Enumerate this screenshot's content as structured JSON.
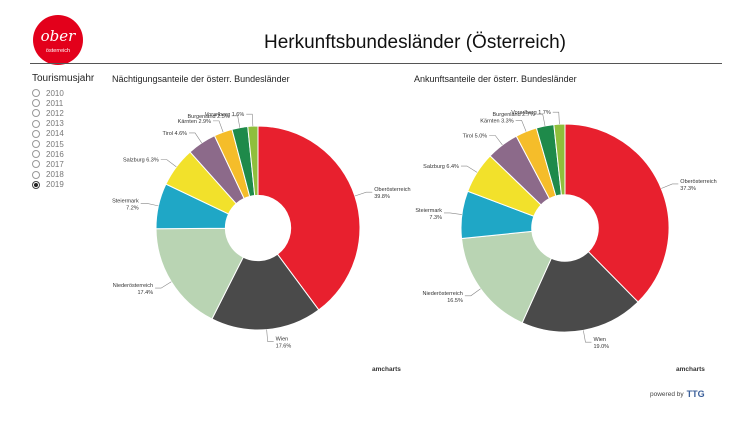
{
  "header": {
    "title": "Herkunftsbundesländer (Österreich)",
    "logo_word": "ober",
    "logo_sub": "österreich"
  },
  "years": {
    "title": "Tourismusjahr",
    "options": [
      "2010",
      "2011",
      "2012",
      "2013",
      "2014",
      "2015",
      "2016",
      "2017",
      "2018",
      "2019"
    ],
    "selected": "2019"
  },
  "credits": {
    "amcharts_1": "amcharts",
    "amcharts_2": "amcharts",
    "powered_by": "powered by",
    "powered_brand": "TTG"
  },
  "colors": {
    "Oberösterreich": "#e8202e",
    "Wien": "#4a4a4a",
    "Niederösterreich": "#b9d4b3",
    "Steiermark": "#1fa7c6",
    "Salzburg": "#f2e12b",
    "Tirol": "#8c6a8a",
    "Kärnten": "#f5bd2a",
    "Burgenland": "#1e8a4a",
    "Vorarlberg": "#8fbf3c"
  },
  "chart_data": [
    {
      "type": "pie",
      "title": "Nächtigungsanteile der österr. Bundesländer",
      "categories": [
        "Oberösterreich",
        "Wien",
        "Niederösterreich",
        "Steiermark",
        "Salzburg",
        "Tirol",
        "Kärnten",
        "Burgenland",
        "Vorarlberg"
      ],
      "values": [
        39.8,
        17.6,
        17.4,
        7.2,
        6.3,
        4.6,
        2.9,
        2.5,
        1.6
      ],
      "label_texts": [
        "Oberösterreich",
        "Wien",
        "Niederösterreich",
        "Steiermark",
        "Salzburg",
        "Tirol",
        "Kärnten",
        "Burgenland",
        "Vorarlberg"
      ],
      "value_texts": [
        "39.8%",
        "17.6%",
        "17.4%",
        "7.2%",
        "6.3%",
        "4.6%",
        "2.9%",
        "2.5%",
        "1.6%"
      ],
      "inner_radius_ratio": 0.32,
      "legend": "none"
    },
    {
      "type": "pie",
      "title": "Ankunftsanteile der österr. Bundesländer",
      "categories": [
        "Oberösterreich",
        "Wien",
        "Niederösterreich",
        "Steiermark",
        "Salzburg",
        "Tirol",
        "Kärnten",
        "Burgenland",
        "Vorarlberg"
      ],
      "values": [
        37.3,
        19.0,
        16.5,
        7.3,
        6.4,
        5.0,
        3.3,
        2.7,
        1.7
      ],
      "label_texts": [
        "Oberösterreich",
        "Wien",
        "Niederösterreich",
        "Steiermark",
        "Salzburg",
        "Tirol",
        "Kärnten",
        "Burgenland",
        "Vorarlberg"
      ],
      "value_texts": [
        "37.3%",
        "19.0%",
        "16.5%",
        "7.3%",
        "6.4%",
        "5.0%",
        "3.3%",
        "2.7%",
        "1.7%"
      ],
      "inner_radius_ratio": 0.32,
      "legend": "none"
    }
  ]
}
